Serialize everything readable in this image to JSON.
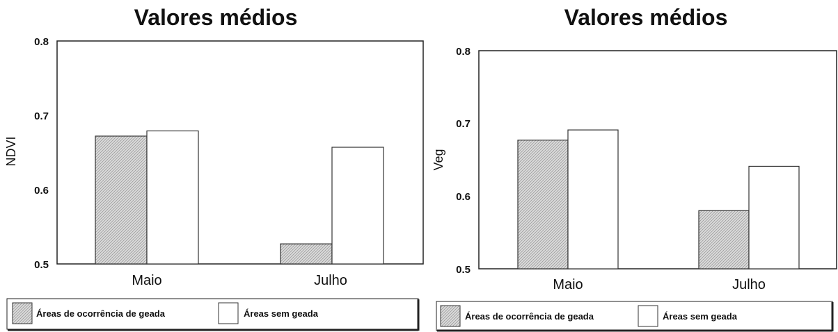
{
  "chart_data": [
    {
      "type": "bar",
      "title": "Valores médios",
      "xlabel": "",
      "ylabel": "NDVI",
      "categories": [
        "Maio",
        "Julho"
      ],
      "yticks": [
        "0.5",
        "0.6",
        "0.7",
        "0.8"
      ],
      "ylim": [
        0.5,
        0.8
      ],
      "grid": false,
      "legend_position": "bottom",
      "series": [
        {
          "name": "Áreas de ocorrência de geada",
          "values": [
            0.672,
            0.527
          ],
          "fill": "hatched-gray"
        },
        {
          "name": "Áreas sem geada",
          "values": [
            0.679,
            0.657
          ],
          "fill": "white"
        }
      ]
    },
    {
      "type": "bar",
      "title": "Valores médios",
      "xlabel": "",
      "ylabel": "Veg",
      "categories": [
        "Maio",
        "Julho"
      ],
      "yticks": [
        "0.5",
        "0.6",
        "0.7",
        "0.8"
      ],
      "ylim": [
        0.5,
        0.8
      ],
      "grid": false,
      "legend_position": "bottom",
      "series": [
        {
          "name": "Áreas de ocorrência de geada",
          "values": [
            0.677,
            0.58
          ],
          "fill": "hatched-gray"
        },
        {
          "name": "Áreas sem geada",
          "values": [
            0.691,
            0.641
          ],
          "fill": "white"
        }
      ]
    }
  ],
  "colors": {
    "hatch_fill": "#dcdcdc",
    "hatch_line": "#9a9a9a",
    "axis": "#222222",
    "bar_stroke": "#333333"
  }
}
